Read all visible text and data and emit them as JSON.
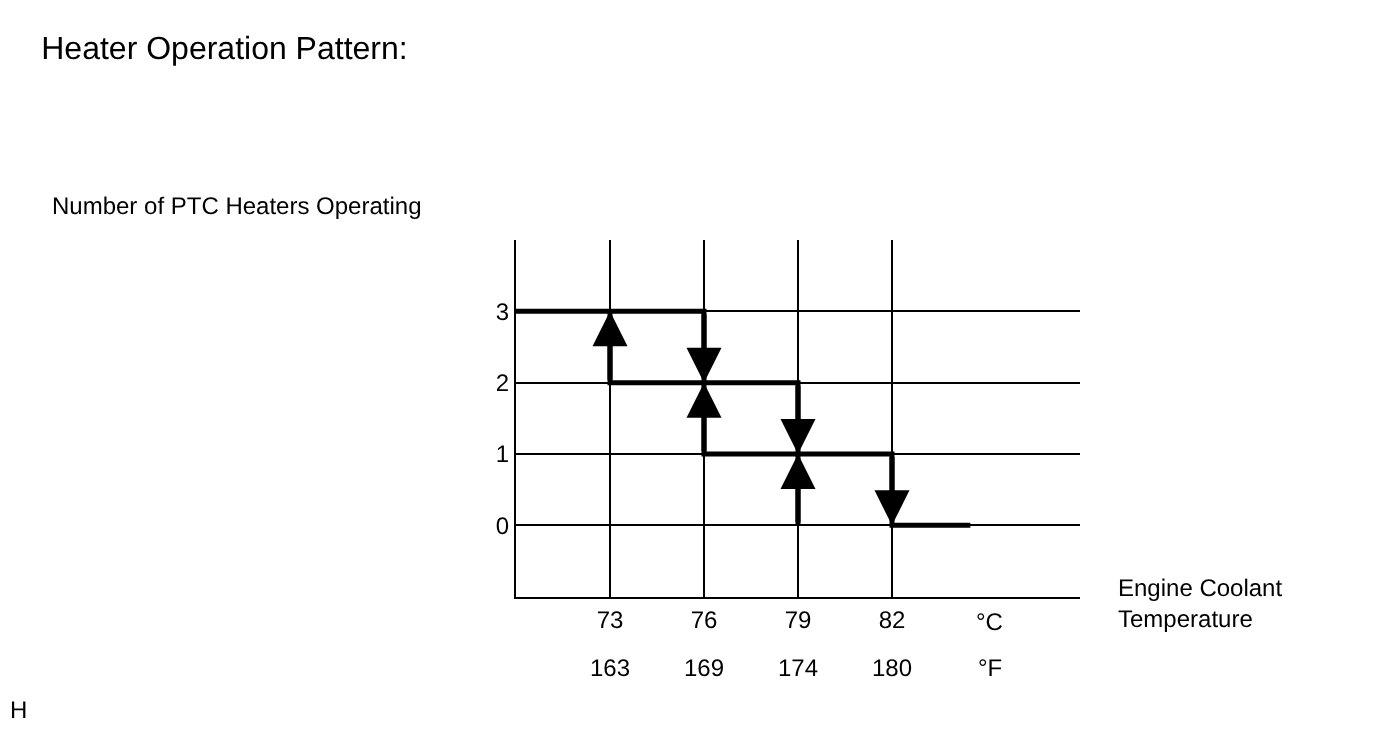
{
  "chart_data": {
    "type": "line",
    "title": "Heater Operation Pattern:",
    "ylabel": "Number of PTC Heaters Operating",
    "xlabel": "Engine Coolant Temperature",
    "series": [
      {
        "color": "#000000",
        "x": [
          70,
          76,
          76,
          79,
          79,
          82,
          82,
          84.5
        ],
        "values": [
          3,
          3,
          2,
          2,
          1,
          1,
          0,
          0
        ]
      },
      {
        "color": "#000000",
        "x": [
          79,
          79,
          76,
          76,
          73,
          73
        ],
        "values": [
          0,
          1,
          1,
          2,
          2,
          3
        ]
      }
    ],
    "xlim": [
      70,
      88
    ],
    "xticks": [
      73,
      76,
      79,
      82
    ],
    "x2lim": [
      158,
      190.4
    ],
    "x2ticks": [
      {
        "value": 163.4,
        "label": "163"
      },
      {
        "value": 168.8,
        "label": "169"
      },
      {
        "value": 174.2,
        "label": "174"
      },
      {
        "value": 179.6,
        "label": "180"
      }
    ],
    "ylim": [
      -1,
      4
    ],
    "yticks": [
      0,
      1,
      2,
      3
    ],
    "grid": true,
    "marker": "none",
    "line_style": "solid",
    "annotations": [
      "°C",
      "°F",
      "H"
    ]
  }
}
